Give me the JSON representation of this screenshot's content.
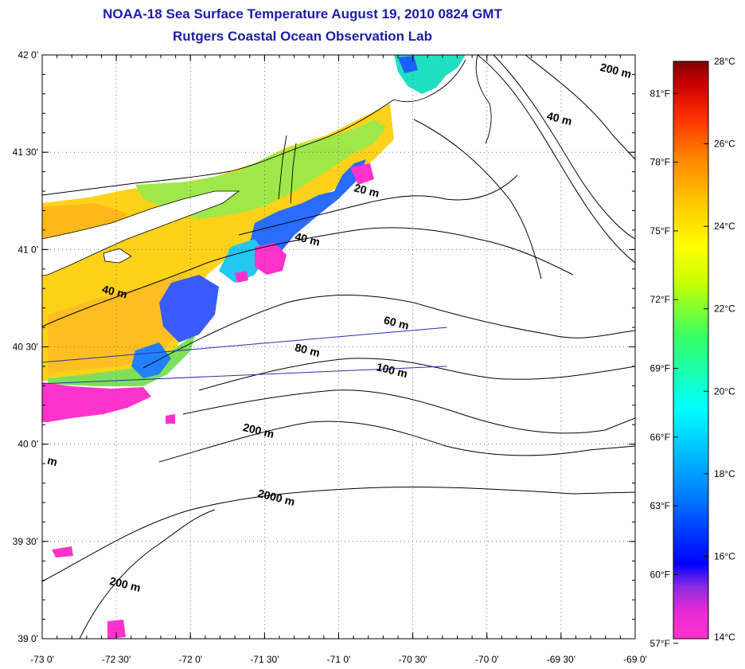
{
  "header": {
    "title": "NOAA-18 Sea Surface Temperature August 19, 2010 0824 GMT",
    "subtitle": "Rutgers Coastal Ocean Observation Lab"
  },
  "map": {
    "lon_range": [
      -73,
      -69
    ],
    "lat_range": [
      39,
      42
    ],
    "lon_ticks": [
      {
        "value": -73.0,
        "label": "-73 0'"
      },
      {
        "value": -72.5,
        "label": "-72 30'"
      },
      {
        "value": -72.0,
        "label": "-72 0'"
      },
      {
        "value": -71.5,
        "label": "-71 30'"
      },
      {
        "value": -71.0,
        "label": "-71 0'"
      },
      {
        "value": -70.5,
        "label": "-70 30'"
      },
      {
        "value": -70.0,
        "label": "-70 0'"
      },
      {
        "value": -69.5,
        "label": "-69 30'"
      },
      {
        "value": -69.0,
        "label": "-69 0'"
      }
    ],
    "lat_ticks": [
      {
        "value": 42.0,
        "label": "42 0'"
      },
      {
        "value": 41.5,
        "label": "41 30'"
      },
      {
        "value": 41.0,
        "label": "41 0'"
      },
      {
        "value": 40.5,
        "label": "40 30'"
      },
      {
        "value": 40.0,
        "label": "40 0'"
      },
      {
        "value": 39.5,
        "label": "39 30'"
      },
      {
        "value": 39.0,
        "label": "39 0'"
      }
    ],
    "grid": true,
    "contour_labels": [
      {
        "text": "20 m",
        "lon": -70.9,
        "lat": 41.3
      },
      {
        "text": "40 m",
        "lon": -71.3,
        "lat": 41.05
      },
      {
        "text": "40 m",
        "lon": -72.6,
        "lat": 40.78
      },
      {
        "text": "60 m",
        "lon": -70.7,
        "lat": 40.62
      },
      {
        "text": "80 m",
        "lon": -71.3,
        "lat": 40.48
      },
      {
        "text": "100 m",
        "lon": -70.75,
        "lat": 40.38
      },
      {
        "text": "200 m",
        "lon": -71.65,
        "lat": 40.07
      },
      {
        "text": "2000 m",
        "lon": -71.55,
        "lat": 39.73
      },
      {
        "text": "200 m",
        "lon": -72.55,
        "lat": 39.28
      },
      {
        "text": "40 m",
        "lon": -69.6,
        "lat": 41.67
      },
      {
        "text": "200 m",
        "lon": -69.24,
        "lat": 41.92
      },
      {
        "text": "m",
        "lon": -72.97,
        "lat": 39.9
      }
    ],
    "transect_lines": [
      {
        "from": [
          -73.0,
          40.42
        ],
        "to": [
          -70.27,
          40.6
        ]
      },
      {
        "from": [
          -73.0,
          40.31
        ],
        "to": [
          -70.27,
          40.4
        ]
      }
    ]
  },
  "colorbar": {
    "celsius_labels": [
      {
        "value": 28,
        "label": "28°C"
      },
      {
        "value": 26,
        "label": "26°C"
      },
      {
        "value": 24,
        "label": "24°C"
      },
      {
        "value": 22,
        "label": "22°C"
      },
      {
        "value": 20,
        "label": "20°C"
      },
      {
        "value": 18,
        "label": "18°C"
      },
      {
        "value": 16,
        "label": "16°C"
      },
      {
        "value": 14,
        "label": "14°C"
      }
    ],
    "fahrenheit_labels": [
      {
        "value": 81,
        "label": "81°F"
      },
      {
        "value": 78,
        "label": "78°F"
      },
      {
        "value": 75,
        "label": "75°F"
      },
      {
        "value": 72,
        "label": "72°F"
      },
      {
        "value": 69,
        "label": "69°F"
      },
      {
        "value": 66,
        "label": "66°F"
      },
      {
        "value": 63,
        "label": "63°F"
      },
      {
        "value": 60,
        "label": "60°F"
      },
      {
        "value": 57,
        "label": "57°F"
      }
    ],
    "range_c": [
      14,
      28
    ],
    "colors": [
      "#ff33cc",
      "#8a2be2",
      "#0000ff",
      "#0080ff",
      "#00ffff",
      "#33ff66",
      "#ccff00",
      "#ffff00",
      "#ffcc00",
      "#ff8800",
      "#ff3300",
      "#cc0000",
      "#800000"
    ]
  }
}
